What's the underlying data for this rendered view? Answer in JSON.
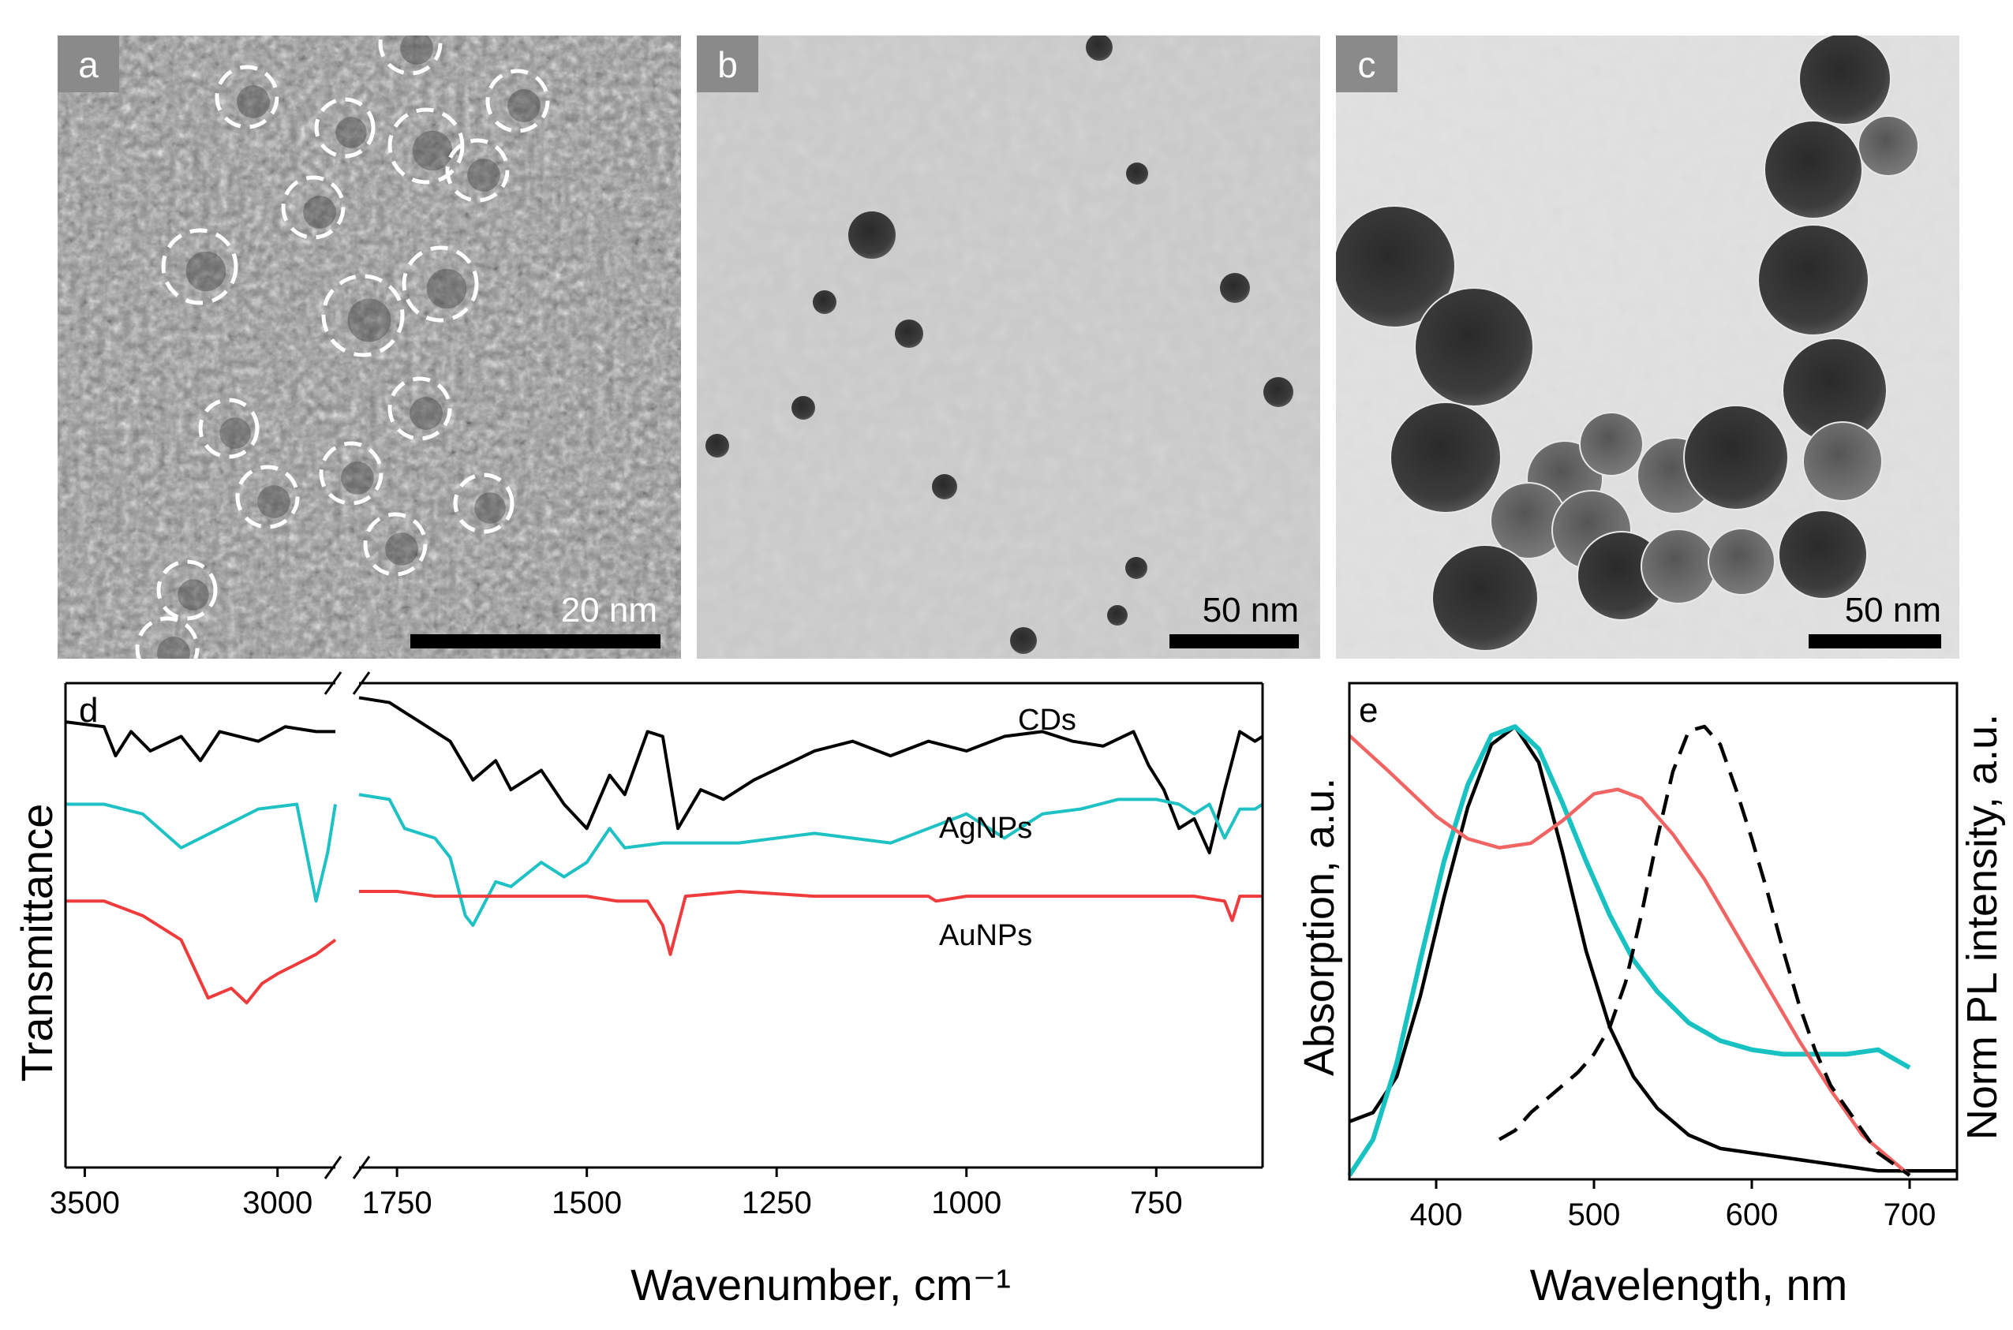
{
  "panels": {
    "a": {
      "label": "a",
      "scale_bar": "20 nm"
    },
    "b": {
      "label": "b",
      "scale_bar": "50 nm"
    },
    "c": {
      "label": "c",
      "scale_bar": "50 nm"
    }
  },
  "chart_data": [
    {
      "type": "line",
      "panel": "d",
      "label": "d",
      "xlabel": "Wavenumber, cm⁻¹",
      "ylabel": "Transmittance",
      "x_axis_break": true,
      "xlim_left": [
        3550,
        2850
      ],
      "xlim_right": [
        1800,
        610
      ],
      "xticks": [
        3500,
        3000,
        1750,
        1500,
        1250,
        1000,
        750
      ],
      "yticks": [],
      "series": [
        {
          "name": "CDs",
          "color": "#000000",
          "x": [
            3550,
            3450,
            3420,
            3380,
            3330,
            3250,
            3200,
            3150,
            3050,
            2980,
            2900,
            2850,
            1800,
            1760,
            1720,
            1680,
            1650,
            1620,
            1600,
            1560,
            1530,
            1500,
            1470,
            1450,
            1420,
            1400,
            1380,
            1350,
            1320,
            1280,
            1200,
            1150,
            1100,
            1050,
            1000,
            950,
            900,
            860,
            820,
            780,
            760,
            740,
            720,
            700,
            680,
            660,
            640,
            620,
            610
          ],
          "y": [
            92,
            91,
            85,
            90,
            86,
            89,
            84,
            90,
            88,
            91,
            90,
            90,
            97,
            96,
            92,
            88,
            80,
            84,
            78,
            82,
            75,
            70,
            81,
            77,
            90,
            89,
            70,
            78,
            76,
            80,
            86,
            88,
            85,
            88,
            86,
            89,
            90,
            88,
            87,
            90,
            83,
            78,
            70,
            72,
            65,
            78,
            90,
            88,
            89
          ]
        },
        {
          "name": "AgNPs",
          "color": "#1ec1c4",
          "x": [
            3550,
            3450,
            3350,
            3250,
            3150,
            3050,
            2950,
            2900,
            2870,
            2850,
            1800,
            1760,
            1740,
            1700,
            1680,
            1660,
            1650,
            1620,
            1600,
            1560,
            1530,
            1500,
            1470,
            1450,
            1400,
            1300,
            1200,
            1100,
            1000,
            950,
            900,
            850,
            800,
            750,
            720,
            700,
            680,
            660,
            640,
            620,
            610
          ],
          "y": [
            75,
            75,
            73,
            66,
            70,
            74,
            75,
            55,
            65,
            75,
            77,
            76,
            70,
            68,
            64,
            52,
            50,
            59,
            58,
            63,
            60,
            63,
            70,
            66,
            67,
            67,
            69,
            67,
            73,
            68,
            73,
            74,
            76,
            76,
            75,
            73,
            75,
            68,
            74,
            74,
            75
          ]
        },
        {
          "name": "AuNPs",
          "color": "#ef3b3b",
          "x": [
            3550,
            3450,
            3350,
            3250,
            3180,
            3120,
            3080,
            3040,
            3000,
            2950,
            2900,
            2850,
            1800,
            1750,
            1700,
            1650,
            1600,
            1550,
            1500,
            1460,
            1420,
            1400,
            1390,
            1370,
            1300,
            1200,
            1100,
            1050,
            1040,
            1000,
            900,
            800,
            700,
            660,
            650,
            640,
            620,
            610
          ],
          "y": [
            55,
            55,
            52,
            47,
            35,
            37,
            34,
            38,
            40,
            42,
            44,
            47,
            57,
            57,
            56,
            56,
            56,
            56,
            56,
            55,
            55,
            50,
            44,
            56,
            57,
            56,
            56,
            56,
            55,
            56,
            56,
            56,
            56,
            55,
            51,
            56,
            56,
            56
          ]
        }
      ]
    },
    {
      "type": "line",
      "panel": "e",
      "label": "e",
      "xlabel": "Wavelength, nm",
      "ylabel": "Absorption, a.u.",
      "ylabel_right": "Norm PL intensity, a.u.",
      "xlim": [
        345,
        730
      ],
      "xticks": [
        400,
        500,
        600,
        700
      ],
      "yticks": [],
      "series": [
        {
          "color": "#000000",
          "style": "solid",
          "x": [
            345,
            360,
            375,
            390,
            405,
            420,
            435,
            450,
            465,
            480,
            495,
            510,
            525,
            540,
            560,
            580,
            600,
            620,
            640,
            660,
            680,
            700,
            730
          ],
          "y": [
            0.12,
            0.14,
            0.22,
            0.4,
            0.62,
            0.82,
            0.96,
            1.0,
            0.92,
            0.72,
            0.5,
            0.33,
            0.22,
            0.15,
            0.09,
            0.06,
            0.05,
            0.04,
            0.03,
            0.02,
            0.01,
            0.01,
            0.01
          ]
        },
        {
          "color": "#19c2c2",
          "style": "solid",
          "x": [
            345,
            360,
            375,
            390,
            405,
            420,
            435,
            450,
            465,
            480,
            495,
            510,
            525,
            540,
            560,
            580,
            600,
            620,
            640,
            660,
            680,
            700
          ],
          "y": [
            0.0,
            0.08,
            0.25,
            0.48,
            0.7,
            0.87,
            0.98,
            1.0,
            0.95,
            0.83,
            0.7,
            0.58,
            0.48,
            0.41,
            0.34,
            0.3,
            0.28,
            0.27,
            0.27,
            0.27,
            0.28,
            0.24
          ]
        },
        {
          "color": "#f06464",
          "style": "solid",
          "x": [
            345,
            370,
            400,
            420,
            440,
            460,
            480,
            500,
            515,
            530,
            550,
            570,
            590,
            610,
            630,
            650,
            670,
            700
          ],
          "y": [
            0.98,
            0.9,
            0.8,
            0.75,
            0.73,
            0.74,
            0.79,
            0.85,
            0.86,
            0.84,
            0.76,
            0.66,
            0.54,
            0.42,
            0.3,
            0.19,
            0.09,
            0.0
          ]
        },
        {
          "color": "#000000",
          "style": "dashed",
          "x": [
            440,
            450,
            460,
            470,
            480,
            490,
            500,
            510,
            520,
            530,
            540,
            550,
            560,
            570,
            580,
            590,
            600,
            610,
            620,
            630,
            640,
            650,
            660,
            670,
            680,
            700
          ],
          "y": [
            0.08,
            0.1,
            0.14,
            0.17,
            0.2,
            0.23,
            0.27,
            0.33,
            0.43,
            0.58,
            0.75,
            0.9,
            0.99,
            1.0,
            0.96,
            0.86,
            0.75,
            0.63,
            0.5,
            0.38,
            0.28,
            0.2,
            0.15,
            0.1,
            0.05,
            0.0
          ]
        }
      ]
    }
  ]
}
